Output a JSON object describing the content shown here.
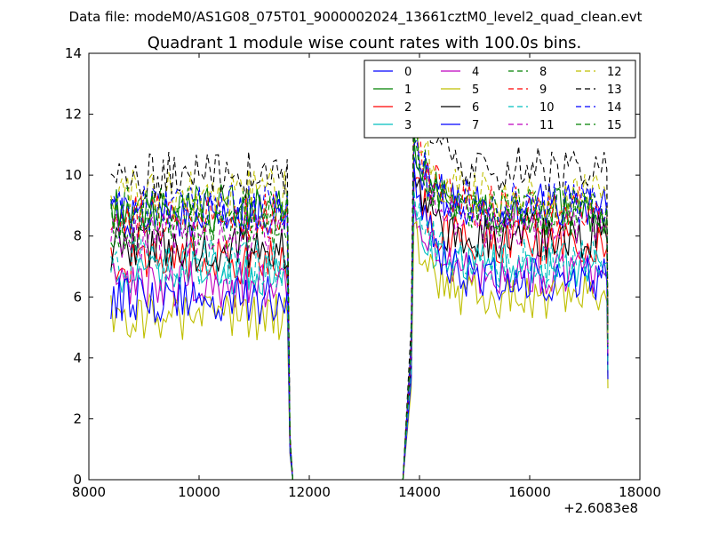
{
  "chart_data": {
    "type": "line",
    "suptitle": "Data file: modeM0/AS1G08_075T01_9000002024_13661cztM0_level2_quad_clean.evt",
    "title": "Quadrant 1 module wise count rates with 100.0s bins.",
    "xlabel": "",
    "ylabel": "",
    "x_offset_label": "+2.6083e8",
    "xlim": [
      8000,
      18000
    ],
    "ylim": [
      0,
      14
    ],
    "xticks": [
      "8000",
      "10000",
      "12000",
      "14000",
      "16000",
      "18000"
    ],
    "yticks": [
      "0",
      "2",
      "4",
      "6",
      "8",
      "10",
      "12",
      "14"
    ],
    "grid": false,
    "legend_position": "top-right",
    "legend_columns": 4,
    "x_segments": {
      "first_on": 8400,
      "first_last_full": 11600,
      "first_drop": [
        11650,
        11700
      ],
      "gap_start": 11800,
      "gap_end": 13700,
      "second_rise": 13850,
      "second_start": 13900,
      "second_end": 17400
    },
    "series": [
      {
        "name": "0",
        "color": "#0000ff",
        "style": "solid",
        "seg1_mean": 8.7,
        "seg2_mean": 9.0,
        "seg2_peak": 10.6
      },
      {
        "name": "1",
        "color": "#008000",
        "style": "solid",
        "seg1_mean": 8.9,
        "seg2_mean": 8.8,
        "seg2_peak": 11.2
      },
      {
        "name": "2",
        "color": "#ff0000",
        "style": "solid",
        "seg1_mean": 7.2,
        "seg2_mean": 7.8,
        "seg2_peak": 9.8
      },
      {
        "name": "3",
        "color": "#00bfbf",
        "style": "solid",
        "seg1_mean": 6.8,
        "seg2_mean": 7.0,
        "seg2_peak": 8.9
      },
      {
        "name": "4",
        "color": "#bf00bf",
        "style": "solid",
        "seg1_mean": 6.4,
        "seg2_mean": 6.8,
        "seg2_peak": 9.2
      },
      {
        "name": "5",
        "color": "#bfbf00",
        "style": "solid",
        "seg1_mean": 5.3,
        "seg2_mean": 6.0,
        "seg2_peak": 8.4
      },
      {
        "name": "6",
        "color": "#000000",
        "style": "solid",
        "seg1_mean": 7.6,
        "seg2_mean": 8.0,
        "seg2_peak": 10.0
      },
      {
        "name": "7",
        "color": "#0000ff",
        "style": "solid",
        "seg1_mean": 5.9,
        "seg2_mean": 6.6,
        "seg2_peak": 10.4
      },
      {
        "name": "8",
        "color": "#008000",
        "style": "dashed",
        "seg1_mean": 8.3,
        "seg2_mean": 8.7,
        "seg2_peak": 11.5
      },
      {
        "name": "9",
        "color": "#ff0000",
        "style": "dashed",
        "seg1_mean": 8.6,
        "seg2_mean": 8.9,
        "seg2_peak": 11.8
      },
      {
        "name": "10",
        "color": "#00bfbf",
        "style": "dashed",
        "seg1_mean": 7.1,
        "seg2_mean": 7.2,
        "seg2_peak": 9.5
      },
      {
        "name": "11",
        "color": "#bf00bf",
        "style": "dashed",
        "seg1_mean": 8.0,
        "seg2_mean": 8.3,
        "seg2_peak": 11.6
      },
      {
        "name": "12",
        "color": "#bfbf00",
        "style": "dashed",
        "seg1_mean": 9.4,
        "seg2_mean": 9.3,
        "seg2_peak": 12.2
      },
      {
        "name": "13",
        "color": "#000000",
        "style": "dashed",
        "seg1_mean": 10.0,
        "seg2_mean": 10.2,
        "seg2_peak": 13.4
      },
      {
        "name": "14",
        "color": "#0000ff",
        "style": "dashed",
        "seg1_mean": 8.9,
        "seg2_mean": 9.1,
        "seg2_peak": 11.0
      },
      {
        "name": "15",
        "color": "#008000",
        "style": "dashed",
        "seg1_mean": 8.8,
        "seg2_mean": 8.9,
        "seg2_peak": 11.3
      }
    ]
  }
}
